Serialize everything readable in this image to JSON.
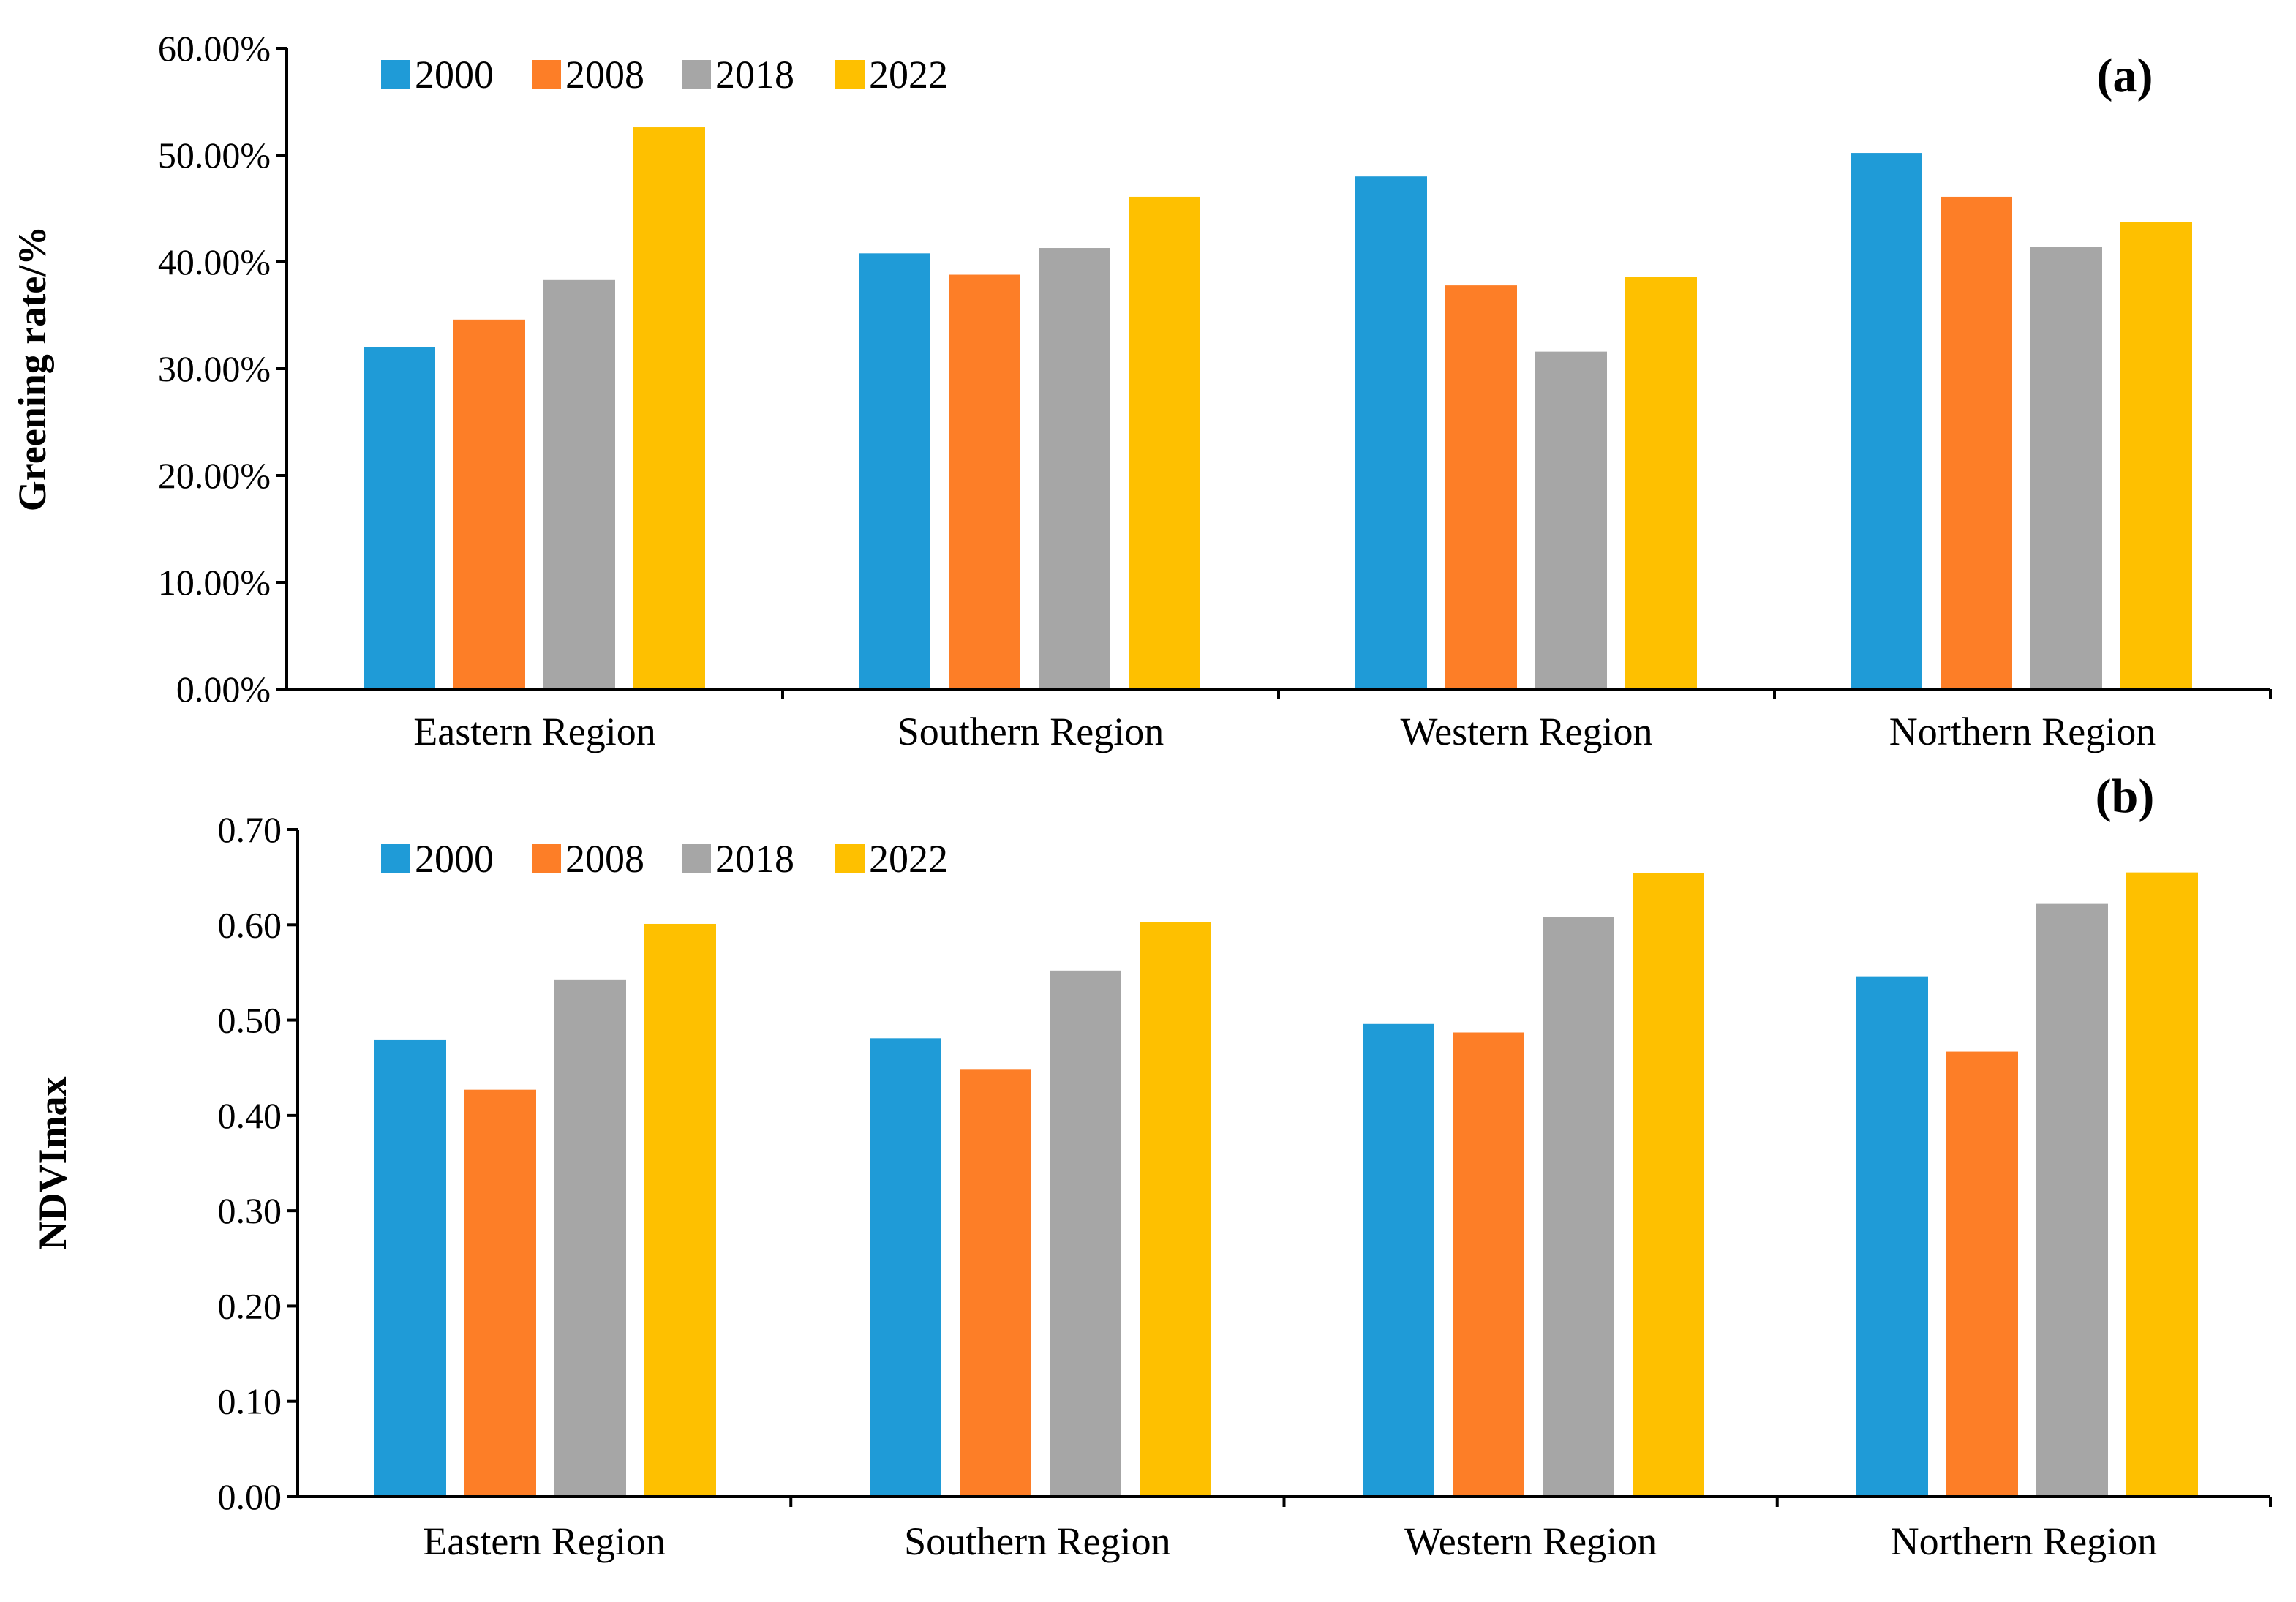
{
  "colors": {
    "series_2000": "#1F9BD7",
    "series_2008": "#FD7E27",
    "series_2018": "#A6A6A6",
    "series_2022": "#FEC000",
    "axis": "#000000"
  },
  "chart_data": [
    {
      "type": "bar",
      "panel_label": "(a)",
      "ylabel": "Greening rate/%",
      "xlabel": "",
      "categories": [
        "Eastern Region",
        "Southern Region",
        "Western Region",
        "Northern Region"
      ],
      "ylim": [
        0,
        60
      ],
      "yticks": [
        0,
        10,
        20,
        30,
        40,
        50,
        60
      ],
      "ytick_labels": [
        "0.00%",
        "10.00%",
        "20.00%",
        "30.00%",
        "40.00%",
        "50.00%",
        "60.00%"
      ],
      "grid": false,
      "legend_position": "top-left",
      "series": [
        {
          "name": "2000",
          "values": [
            32.0,
            40.8,
            48.0,
            50.2
          ]
        },
        {
          "name": "2008",
          "values": [
            34.6,
            38.8,
            37.8,
            46.1
          ]
        },
        {
          "name": "2018",
          "values": [
            38.3,
            41.3,
            31.6,
            41.4
          ]
        },
        {
          "name": "2022",
          "values": [
            52.6,
            46.1,
            38.6,
            43.7
          ]
        }
      ]
    },
    {
      "type": "bar",
      "panel_label": "(b)",
      "ylabel": "NDVImax",
      "xlabel": "",
      "categories": [
        "Eastern Region",
        "Southern Region",
        "Western Region",
        "Northern Region"
      ],
      "ylim": [
        0,
        0.7
      ],
      "yticks": [
        0,
        0.1,
        0.2,
        0.3,
        0.4,
        0.5,
        0.6,
        0.7
      ],
      "ytick_labels": [
        "0.00",
        "0.10",
        "0.20",
        "0.30",
        "0.40",
        "0.50",
        "0.60",
        "0.70"
      ],
      "grid": false,
      "legend_position": "top-left",
      "series": [
        {
          "name": "2000",
          "values": [
            0.479,
            0.481,
            0.496,
            0.546
          ]
        },
        {
          "name": "2008",
          "values": [
            0.427,
            0.448,
            0.487,
            0.467
          ]
        },
        {
          "name": "2018",
          "values": [
            0.542,
            0.552,
            0.608,
            0.622
          ]
        },
        {
          "name": "2022",
          "values": [
            0.601,
            0.603,
            0.654,
            0.655
          ]
        }
      ]
    }
  ]
}
